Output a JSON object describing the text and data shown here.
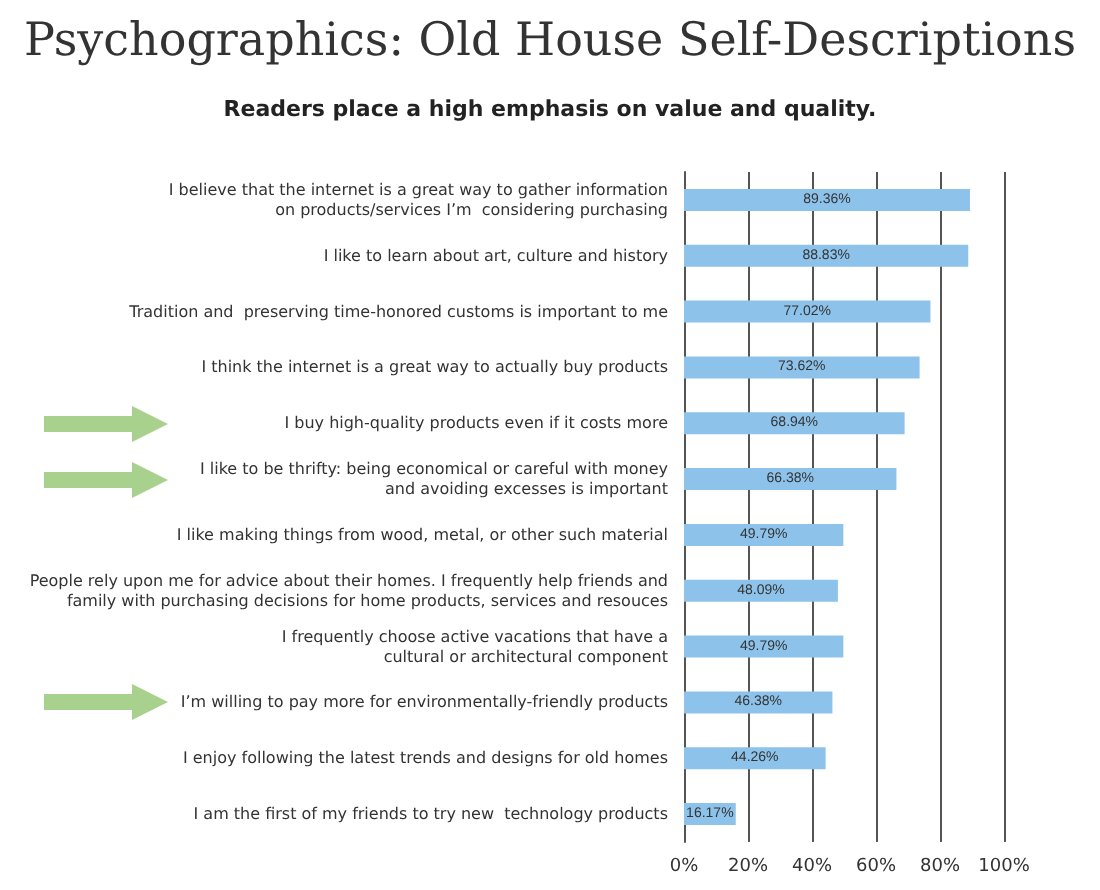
{
  "chart_data": {
    "type": "bar",
    "orientation": "horizontal",
    "title": "Psychographics: Old House Self-Descriptions",
    "subtitle": "Readers place a high emphasis on value and quality.",
    "categories": [
      "I believe that the internet is a great way to gather information\non products/services I’m  considering purchasing",
      "I like to learn about art, culture and history",
      "Tradition and  preserving time-honored customs is important to me",
      "I think the internet is a great way to actually buy products",
      "I buy high-quality products even if it costs more",
      "I like to be thrifty: being economical or careful with money\nand avoiding excesses is important",
      "I like making things from wood, metal, or other such material",
      "People rely upon me for advice about their homes. I frequently help friends and\nfamily with purchasing decisions for home products, services and resouces",
      "I frequently choose active vacations that have a\ncultural or architectural component",
      "I’m willing to pay more for environmentally-friendly products",
      "I enjoy following the latest trends and designs for old homes",
      "I am the first of my friends to try new  technology products"
    ],
    "values": [
      89.36,
      88.83,
      77.02,
      73.62,
      68.94,
      66.38,
      49.79,
      48.09,
      49.79,
      46.38,
      44.26,
      16.17
    ],
    "value_labels": [
      "89.36%",
      "88.83%",
      "77.02%",
      "73.62%",
      "68.94%",
      "66.38%",
      "49.79%",
      "48.09%",
      "49.79%",
      "46.38%",
      "44.26%",
      "16.17%"
    ],
    "color": "#8dc3ea",
    "xlim": [
      0,
      100
    ],
    "xticks": [
      {
        "value": 0,
        "label": "0%"
      },
      {
        "value": 20,
        "label": "20%"
      },
      {
        "value": 40,
        "label": "40%"
      },
      {
        "value": 60,
        "label": "60%"
      },
      {
        "value": 80,
        "label": "80%"
      },
      {
        "value": 100,
        "label": "100%"
      }
    ],
    "grid": "x"
  }
}
